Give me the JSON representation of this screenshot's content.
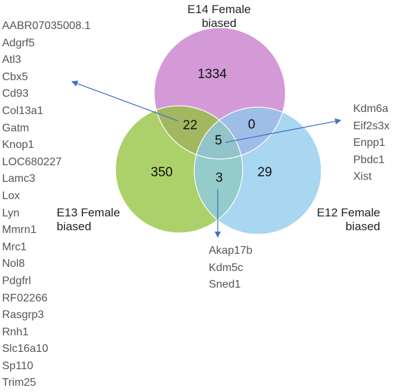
{
  "sets": {
    "e14": {
      "label_line1": "E14 Female",
      "label_line2": "biased",
      "color": "#cc88d0"
    },
    "e13": {
      "label_line1": "E13 Female",
      "label_line2": "biased",
      "color": "#92c138"
    },
    "e12": {
      "label_line1": "E12 Female",
      "label_line2": "biased",
      "color": "#8cc8ec"
    }
  },
  "regions": {
    "e14_only": "1334",
    "e13_only": "350",
    "e12_only": "29",
    "e14_e13": "22",
    "e14_e12": "0",
    "e13_e12": "3",
    "all_three": "5"
  },
  "gene_lists": {
    "e14_e13": [
      "AABR07035008.1",
      "Adgrf5",
      "Atl3",
      "Cbx5",
      "Cd93",
      "Col13a1",
      "Gatm",
      "Knop1",
      "LOC680227",
      "Lamc3",
      "Lox",
      "Lyn",
      "Mmrn1",
      "Mrc1",
      "Nol8",
      "Pdgfrl",
      "RF02266",
      "Rasgrp3",
      "Rnh1",
      "Slc16a10",
      "Sp110",
      "Trim25"
    ],
    "all_three": [
      "Kdm6a",
      "Eif2s3x",
      "Enpp1",
      "Pbdc1",
      "Xist"
    ],
    "e13_e12": [
      "Akap17b",
      "Kdm5c",
      "Sned1"
    ]
  },
  "arrow_color": "#4472c4"
}
